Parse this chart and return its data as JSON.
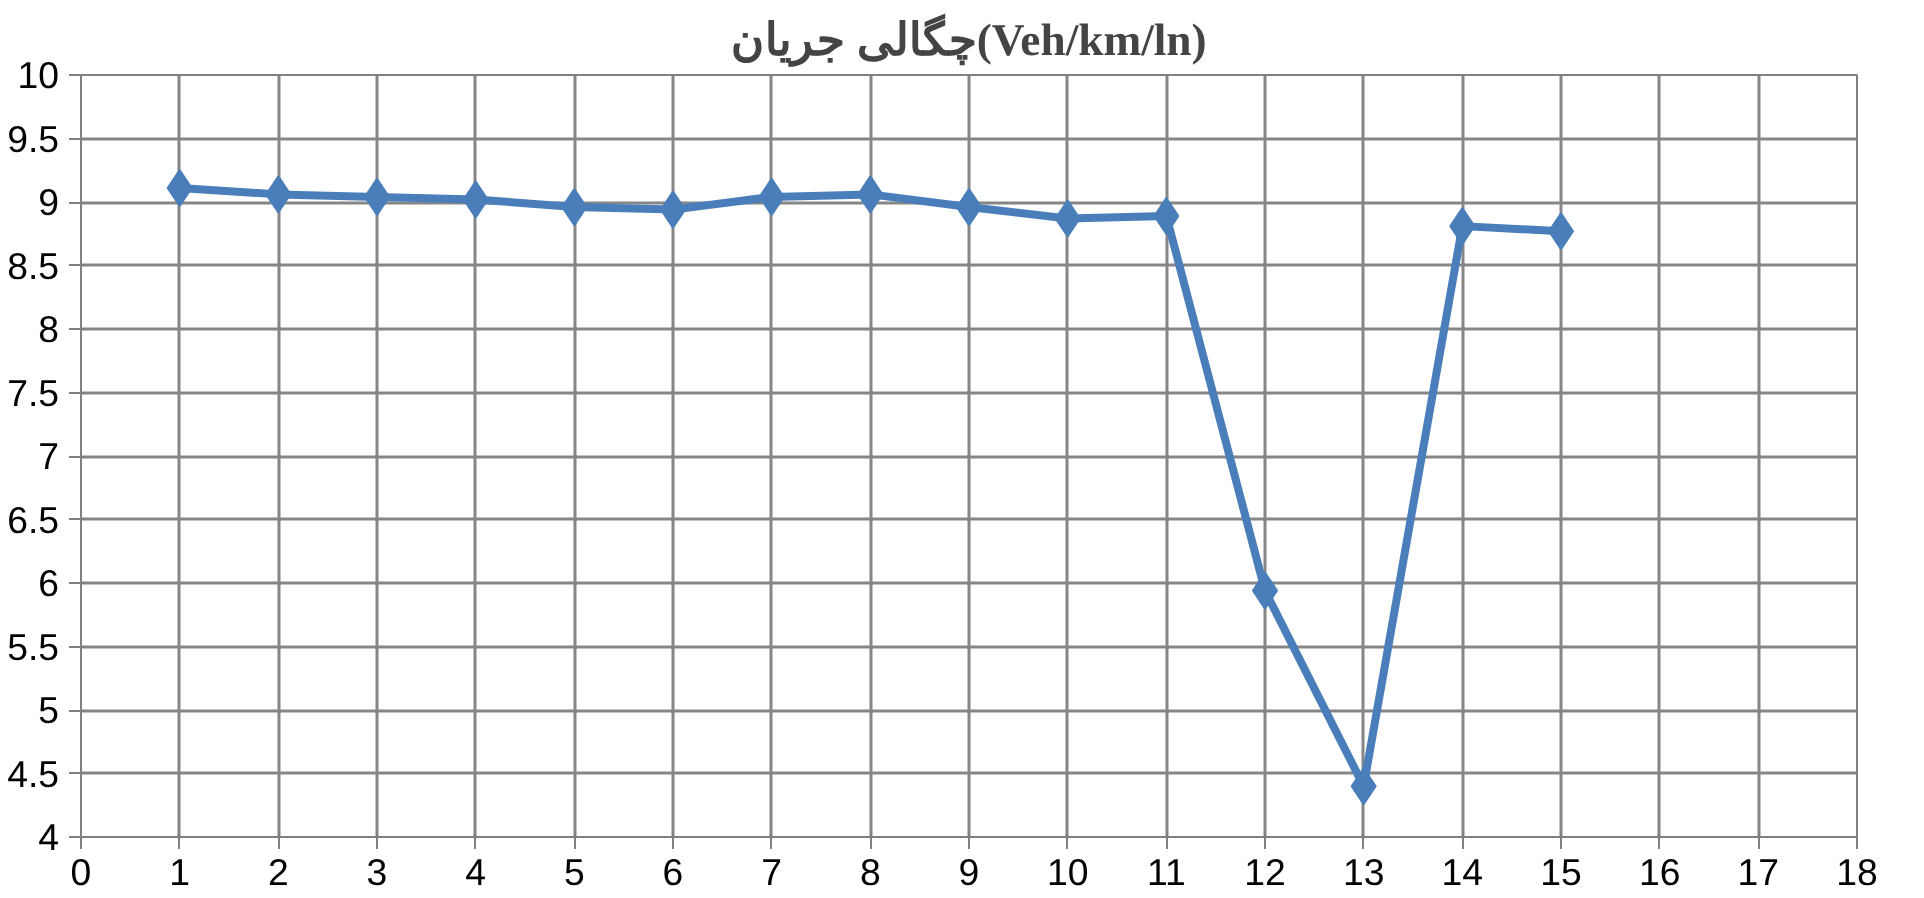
{
  "chart_data": {
    "type": "line",
    "title": "چگالی جریان(Veh/km/ln)",
    "x": [
      1,
      2,
      3,
      4,
      5,
      6,
      7,
      8,
      9,
      10,
      11,
      12,
      13,
      14,
      15
    ],
    "series": [
      {
        "color": "#4a7ebb",
        "values": [
          9.11,
          9.06,
          9.04,
          9.02,
          8.96,
          8.94,
          9.04,
          9.06,
          8.96,
          8.87,
          8.89,
          5.94,
          4.4,
          8.81,
          8.77
        ]
      }
    ],
    "xlim": [
      0,
      18
    ],
    "ylim": [
      4,
      10
    ],
    "xticks": [
      0,
      1,
      2,
      3,
      4,
      5,
      6,
      7,
      8,
      9,
      10,
      11,
      12,
      13,
      14,
      15,
      16,
      17,
      18
    ],
    "yticks": [
      4,
      4.5,
      5,
      5.5,
      6,
      6.5,
      7,
      7.5,
      8,
      8.5,
      9,
      9.5,
      10
    ],
    "grid": true,
    "marker": "diamond",
    "line_style": "solid"
  }
}
